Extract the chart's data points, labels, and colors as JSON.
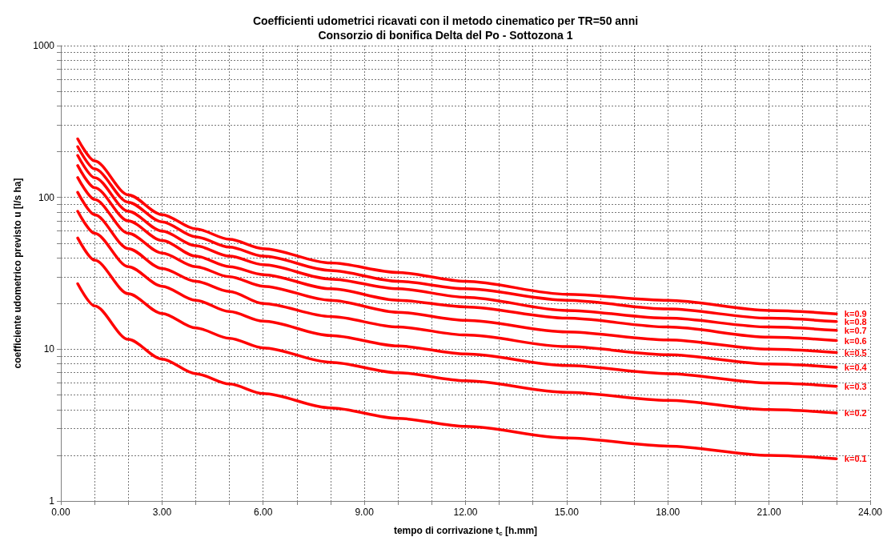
{
  "chart_data": {
    "type": "line",
    "title": "Coefficienti udometrici ricavati con il metodo cinematico per TR=50 anni",
    "subtitle": "Consorzio di bonifica Delta del Po - Sottozona 1",
    "xlabel": "tempo di corrivazione t$_{c}$ [h.mm]",
    "ylabel": "coefficiente udometrico previsto u [l/s ha]",
    "x": [
      0.5,
      1,
      2,
      3,
      4,
      5,
      6,
      8,
      10,
      12,
      15,
      18,
      21,
      23
    ],
    "series": [
      {
        "name": "k=0.1",
        "color": "#ff0000",
        "values": [
          27,
          19.3,
          11.6,
          8.6,
          6.9,
          5.9,
          5.1,
          4.1,
          3.5,
          3.1,
          2.6,
          2.3,
          2.0,
          1.9
        ]
      },
      {
        "name": "k=0.2",
        "color": "#ff0000",
        "values": [
          54,
          38.6,
          23.2,
          17.2,
          13.8,
          11.8,
          10.2,
          8.2,
          7,
          6.2,
          5.2,
          4.6,
          4,
          3.8
        ]
      },
      {
        "name": "k=0.3",
        "color": "#ff0000",
        "values": [
          81,
          58,
          35,
          26,
          21,
          17.7,
          15.3,
          12.3,
          10.5,
          9.3,
          7.8,
          6.9,
          6,
          5.7
        ]
      },
      {
        "name": "k=0.4",
        "color": "#ff0000",
        "values": [
          108,
          77,
          46,
          34,
          28,
          24,
          20,
          16.4,
          14,
          12.4,
          10.4,
          9.2,
          8,
          7.6
        ]
      },
      {
        "name": "k=0.5",
        "color": "#ff0000",
        "values": [
          135,
          97,
          58,
          43,
          35,
          30,
          26,
          21,
          17.5,
          15.5,
          13,
          11.5,
          10,
          9.5
        ]
      },
      {
        "name": "k=0.6",
        "color": "#ff0000",
        "values": [
          162,
          116,
          70,
          52,
          41,
          35,
          31,
          25,
          21,
          19,
          16,
          14,
          12,
          11.4
        ]
      },
      {
        "name": "k=0.7",
        "color": "#ff0000",
        "values": [
          189,
          135,
          81,
          60,
          48,
          41,
          36,
          29,
          25,
          22,
          18,
          16,
          14,
          13.3
        ]
      },
      {
        "name": "k=0.8",
        "color": "#ff0000",
        "values": [
          216,
          154,
          93,
          69,
          55,
          47,
          41,
          33,
          28,
          25,
          21,
          18.4,
          16,
          15.2
        ]
      },
      {
        "name": "k=0.9",
        "color": "#ff0000",
        "values": [
          243,
          174,
          104,
          77,
          62,
          53,
          46,
          37,
          32,
          28,
          23,
          21,
          18,
          17.1
        ]
      }
    ],
    "xlim": [
      0,
      24
    ],
    "xticks": [
      {
        "value": 0,
        "label": "0.00"
      },
      {
        "value": 1,
        "label": null
      },
      {
        "value": 2,
        "label": null
      },
      {
        "value": 3,
        "label": "3.00"
      },
      {
        "value": 4,
        "label": null
      },
      {
        "value": 5,
        "label": null
      },
      {
        "value": 6,
        "label": "6.00"
      },
      {
        "value": 7,
        "label": null
      },
      {
        "value": 8,
        "label": null
      },
      {
        "value": 9,
        "label": "9.00"
      },
      {
        "value": 10,
        "label": null
      },
      {
        "value": 11,
        "label": null
      },
      {
        "value": 12,
        "label": "12.00"
      },
      {
        "value": 13,
        "label": null
      },
      {
        "value": 14,
        "label": null
      },
      {
        "value": 15,
        "label": "15.00"
      },
      {
        "value": 16,
        "label": null
      },
      {
        "value": 17,
        "label": null
      },
      {
        "value": 18,
        "label": "18.00"
      },
      {
        "value": 19,
        "label": null
      },
      {
        "value": 20,
        "label": null
      },
      {
        "value": 21,
        "label": "21.00"
      },
      {
        "value": 22,
        "label": null
      },
      {
        "value": 23,
        "label": null
      },
      {
        "value": 24,
        "label": "24.00"
      }
    ],
    "ylim": [
      1,
      1000
    ],
    "yticks": [
      1,
      {
        "value": 2,
        "label": null
      },
      {
        "value": 3,
        "label": null
      },
      {
        "value": 4,
        "label": null
      },
      {
        "value": 5,
        "label": null
      },
      {
        "value": 6,
        "label": null
      },
      {
        "value": 7,
        "label": null
      },
      {
        "value": 8,
        "label": null
      },
      {
        "value": 9,
        "label": null
      },
      10,
      {
        "value": 20,
        "label": null
      },
      {
        "value": 30,
        "label": null
      },
      {
        "value": 40,
        "label": null
      },
      {
        "value": 50,
        "label": null
      },
      {
        "value": 60,
        "label": null
      },
      {
        "value": 70,
        "label": null
      },
      {
        "value": 80,
        "label": null
      },
      {
        "value": 90,
        "label": null
      },
      100,
      {
        "value": 200,
        "label": null
      },
      {
        "value": 300,
        "label": null
      },
      {
        "value": 400,
        "label": null
      },
      {
        "value": 500,
        "label": null
      },
      {
        "value": 600,
        "label": null
      },
      {
        "value": 700,
        "label": null
      },
      {
        "value": 800,
        "label": null
      },
      {
        "value": 900,
        "label": null
      },
      1000
    ],
    "log": "y",
    "grid": true,
    "legend": false,
    "marker": "none",
    "line_style": "solid"
  }
}
